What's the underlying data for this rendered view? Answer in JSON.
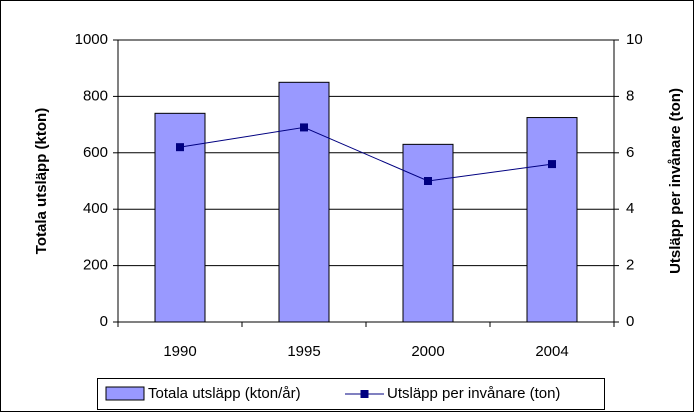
{
  "chart_data": {
    "type": "bar",
    "categories": [
      "1990",
      "1995",
      "2000",
      "2004"
    ],
    "series": [
      {
        "name": "Totala utsläpp (kton/år)",
        "color": "#9999ff",
        "values": [
          740,
          850,
          630,
          725
        ]
      },
      {
        "name": "Utsläpp per invånare (ton)",
        "color": "#000080",
        "type": "line",
        "axis": "y2",
        "values": [
          6.2,
          6.9,
          5.0,
          5.6
        ]
      }
    ],
    "ylabel": "Totala utsläpp (kton)",
    "y2label": "Utsläpp per invånare (ton)",
    "ylim": [
      0,
      1000
    ],
    "yticks": [
      0,
      200,
      400,
      600,
      800,
      1000
    ],
    "y2lim": [
      0,
      10
    ],
    "y2ticks": [
      0,
      2,
      4,
      6,
      8,
      10
    ],
    "grid": true,
    "legend": "bottom"
  }
}
